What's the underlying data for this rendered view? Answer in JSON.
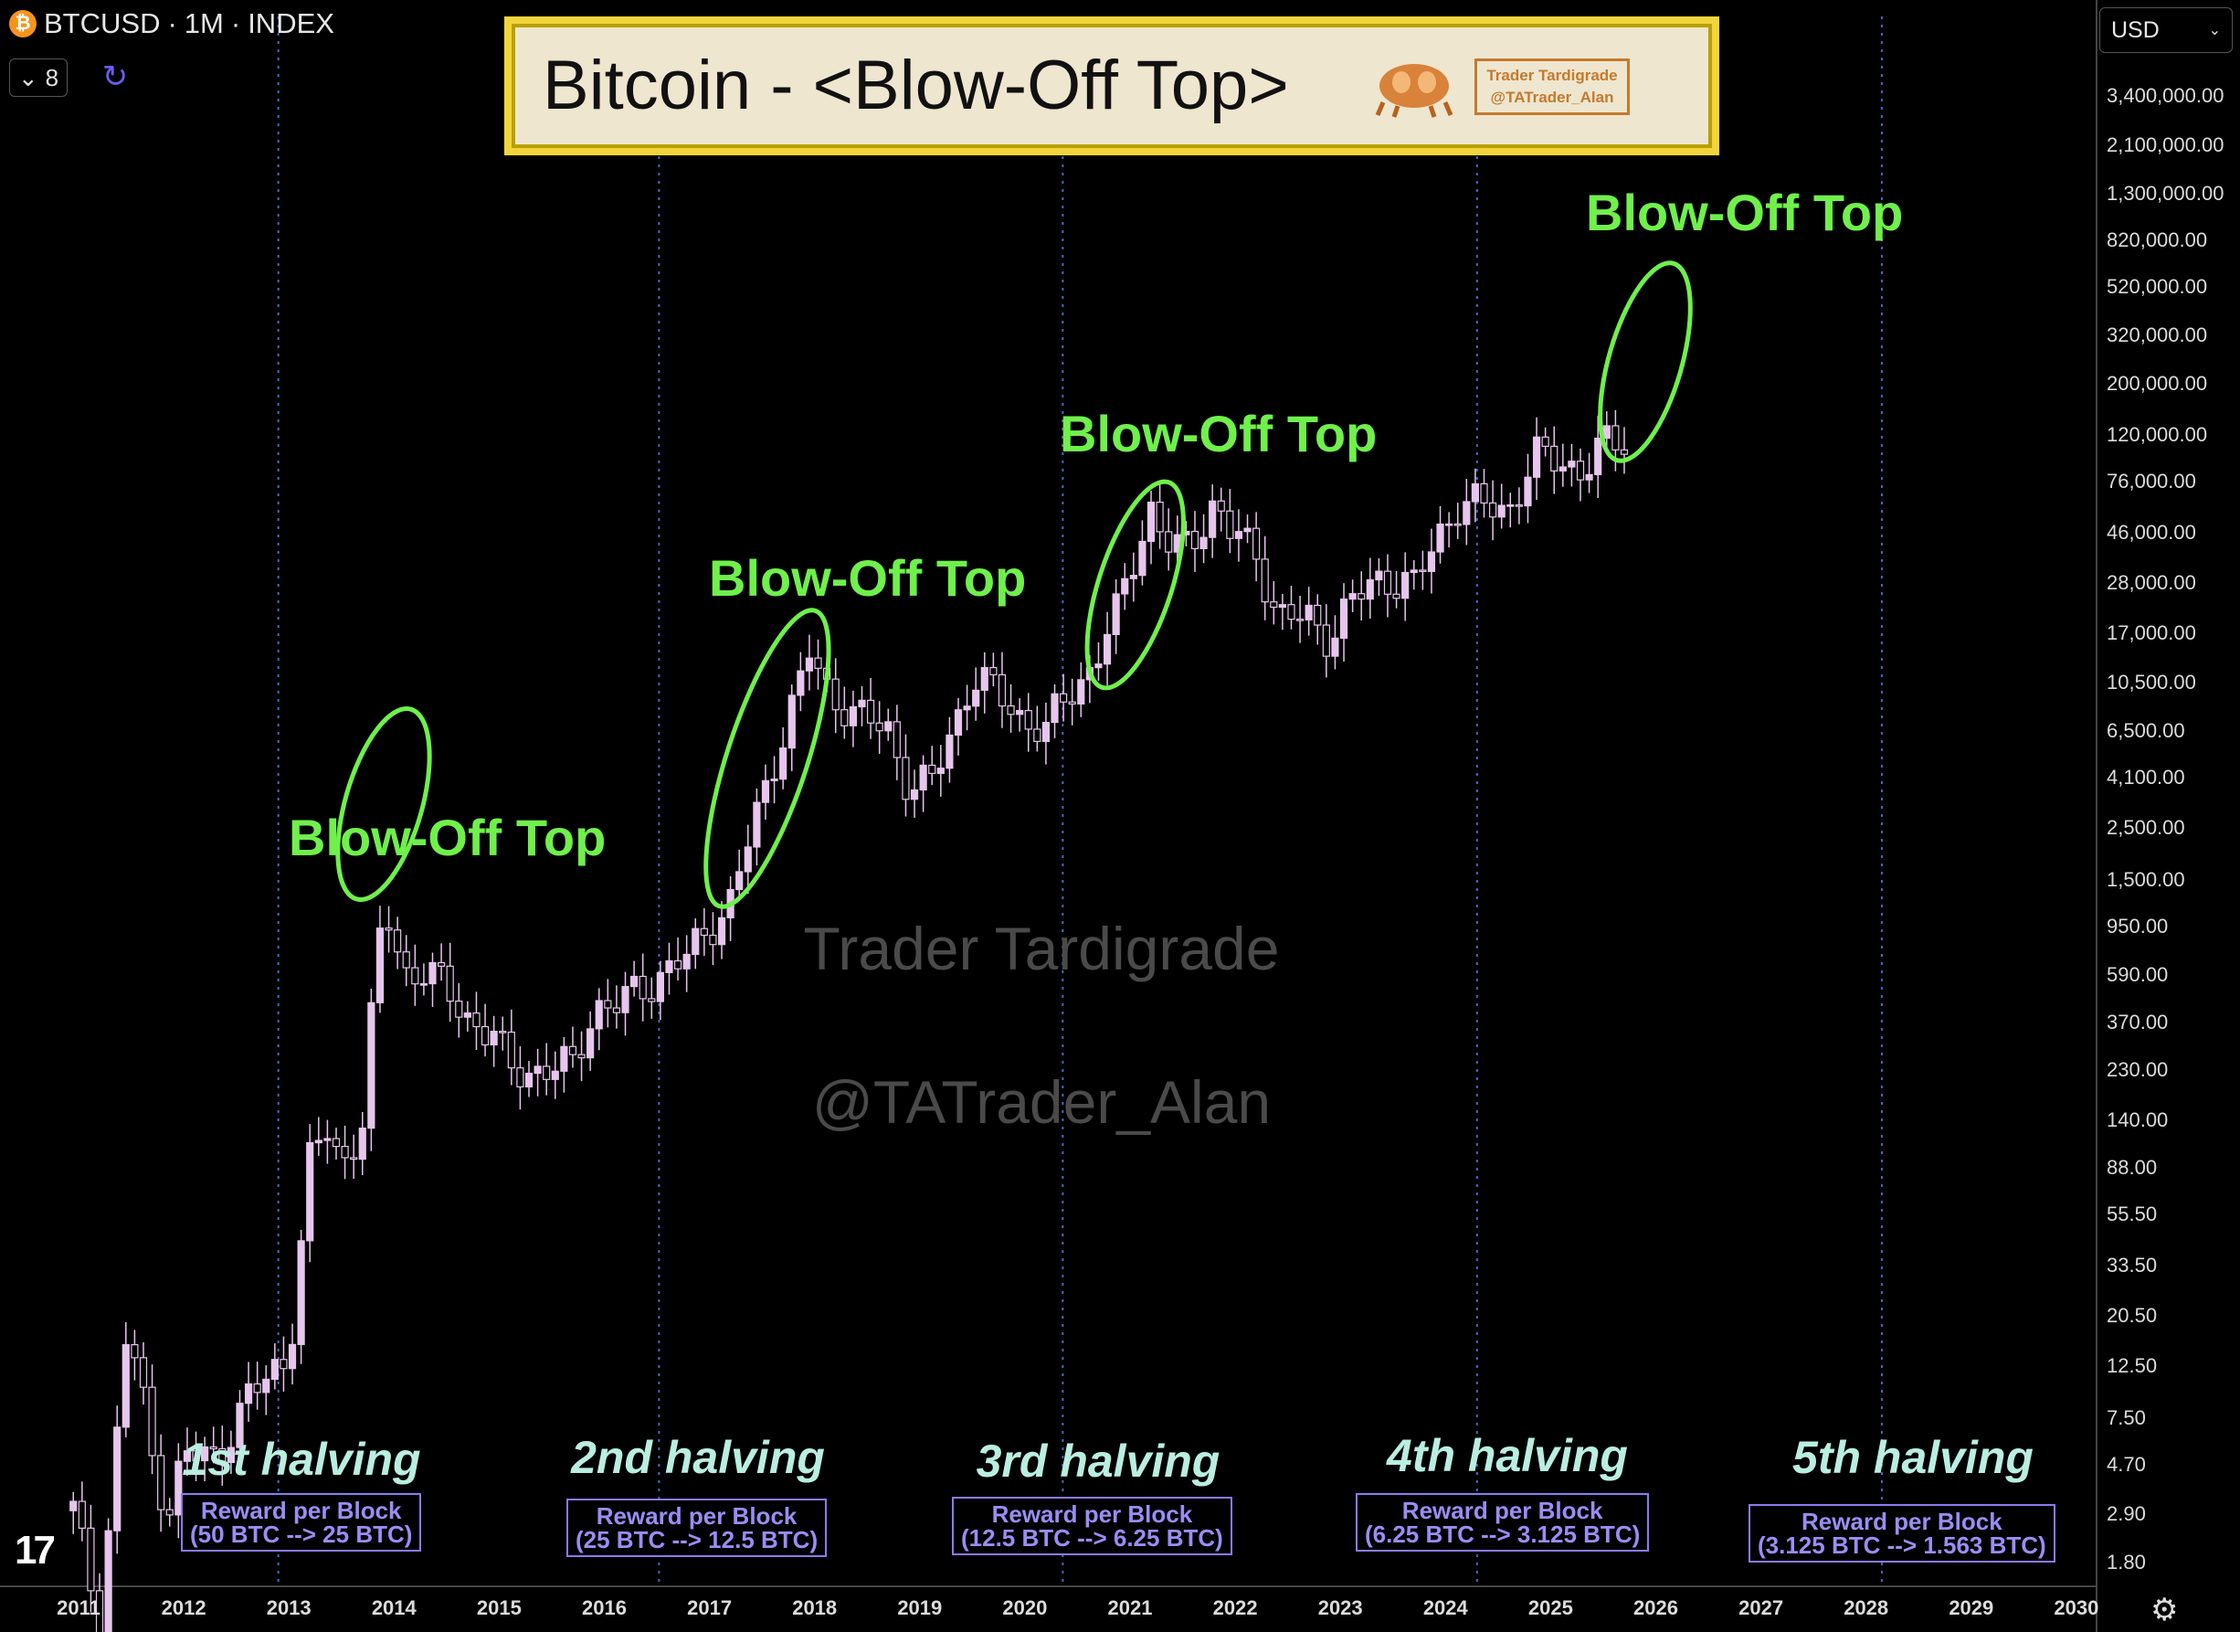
{
  "header": {
    "symbol": "BTCUSD",
    "interval": "1M",
    "source": "INDEX",
    "separator": "·",
    "indicator_count": "8"
  },
  "title_box": {
    "title": "Bitcoin - <Blow-Off Top>",
    "badge_line1": "Trader Tardigrade",
    "badge_line2": "@TATrader_Alan"
  },
  "currency": "USD",
  "watermark": {
    "line1": "Trader Tardigrade",
    "line2": "@TATrader_Alan"
  },
  "annotations": [
    {
      "text": "Blow-Off Top"
    },
    {
      "text": "Blow-Off Top"
    },
    {
      "text": "Blow-Off Top"
    },
    {
      "text": "Blow-Off Top"
    }
  ],
  "halvings": [
    {
      "label": "1st halving",
      "reward_title": "Reward per Block",
      "reward_detail": "(50 BTC --> 25 BTC)"
    },
    {
      "label": "2nd halving",
      "reward_title": "Reward per Block",
      "reward_detail": "(25 BTC --> 12.5 BTC)"
    },
    {
      "label": "3rd halving",
      "reward_title": "Reward per Block",
      "reward_detail": "(12.5 BTC --> 6.25 BTC)"
    },
    {
      "label": "4th halving",
      "reward_title": "Reward per Block",
      "reward_detail": "(6.25 BTC --> 3.125 BTC)"
    },
    {
      "label": "5th halving",
      "reward_title": "Reward per Block",
      "reward_detail": "(3.125 BTC --> 1.563 BTC)"
    }
  ],
  "colors": {
    "candle": "#e6c6ec",
    "annotation": "#6ff04b",
    "halving_line": "#4a66c8",
    "reward_box": "#8a7bf0"
  },
  "chart_data": {
    "type": "candlestick",
    "scale": "log",
    "ylim": [
      1.8,
      3400000
    ],
    "y_ticks": [
      "3,400,000.00",
      "2,100,000.00",
      "1,300,000.00",
      "820,000.00",
      "520,000.00",
      "320,000.00",
      "200,000.00",
      "120,000.00",
      "76,000.00",
      "46,000.00",
      "28,000.00",
      "17,000.00",
      "10,500.00",
      "6,500.00",
      "4,100.00",
      "2,500.00",
      "1,500.00",
      "950.00",
      "590.00",
      "370.00",
      "230.00",
      "140.00",
      "88.00",
      "55.50",
      "33.50",
      "20.50",
      "12.50",
      "7.50",
      "4.70",
      "2.90",
      "1.80"
    ],
    "x_ticks": [
      "2011",
      "2012",
      "2013",
      "2014",
      "2015",
      "2016",
      "2017",
      "2018",
      "2019",
      "2020",
      "2021",
      "2022",
      "2023",
      "2024",
      "2025",
      "2026",
      "2027",
      "2028",
      "2029",
      "2030"
    ],
    "halving_dates": [
      2012.9,
      2016.52,
      2020.36,
      2024.3,
      2028.15
    ],
    "monthly_close": [
      [
        2010.95,
        3.0
      ],
      [
        2011.2,
        1.0
      ],
      [
        2011.4,
        9.0
      ],
      [
        2011.45,
        16.0
      ],
      [
        2011.55,
        13.0
      ],
      [
        2011.7,
        5.0
      ],
      [
        2011.85,
        3.0
      ],
      [
        2012.0,
        5.2
      ],
      [
        2012.3,
        5.0
      ],
      [
        2012.6,
        9.0
      ],
      [
        2012.8,
        11.0
      ],
      [
        2013.0,
        14.0
      ],
      [
        2013.2,
        93.0
      ],
      [
        2013.35,
        130.0
      ],
      [
        2013.5,
        90.0
      ],
      [
        2013.7,
        140.0
      ],
      [
        2013.85,
        800.0
      ],
      [
        2013.95,
        1000.0
      ],
      [
        2014.1,
        600.0
      ],
      [
        2014.3,
        620.0
      ],
      [
        2014.5,
        500.0
      ],
      [
        2014.7,
        390.0
      ],
      [
        2014.95,
        320.0
      ],
      [
        2015.1,
        230.0
      ],
      [
        2015.4,
        230.0
      ],
      [
        2015.7,
        240.0
      ],
      [
        2015.9,
        430.0
      ],
      [
        2016.1,
        430.0
      ],
      [
        2016.4,
        530.0
      ],
      [
        2016.6,
        620.0
      ],
      [
        2016.8,
        700.0
      ],
      [
        2017.0,
        960.0
      ],
      [
        2017.2,
        1200.0
      ],
      [
        2017.4,
        2400.0
      ],
      [
        2017.6,
        4700.0
      ],
      [
        2017.85,
        10000.0
      ],
      [
        2017.95,
        14000.0
      ],
      [
        2018.1,
        10000.0
      ],
      [
        2018.4,
        7500.0
      ],
      [
        2018.7,
        6600.0
      ],
      [
        2018.9,
        3700.0
      ],
      [
        2019.1,
        3800.0
      ],
      [
        2019.4,
        8500.0
      ],
      [
        2019.5,
        11000.0
      ],
      [
        2019.8,
        9000.0
      ],
      [
        2020.0,
        7200.0
      ],
      [
        2020.2,
        6400.0
      ],
      [
        2020.4,
        9500.0
      ],
      [
        2020.6,
        11500.0
      ],
      [
        2020.85,
        19000.0
      ],
      [
        2021.0,
        33000.0
      ],
      [
        2021.2,
        58000.0
      ],
      [
        2021.4,
        37000.0
      ],
      [
        2021.55,
        41000.0
      ],
      [
        2021.8,
        61000.0
      ],
      [
        2021.95,
        46000.0
      ],
      [
        2022.2,
        38000.0
      ],
      [
        2022.4,
        20000.0
      ],
      [
        2022.7,
        19500.0
      ],
      [
        2022.9,
        16500.0
      ],
      [
        2023.1,
        23000.0
      ],
      [
        2023.4,
        30000.0
      ],
      [
        2023.7,
        27000.0
      ],
      [
        2023.9,
        42000.0
      ],
      [
        2024.1,
        61000.0
      ],
      [
        2024.3,
        60000.0
      ],
      [
        2024.6,
        58000.0
      ],
      [
        2024.85,
        96000.0
      ],
      [
        2025.1,
        94000.0
      ],
      [
        2025.3,
        84000.0
      ],
      [
        2025.5,
        107000.0
      ],
      [
        2025.7,
        115000.0
      ]
    ]
  }
}
